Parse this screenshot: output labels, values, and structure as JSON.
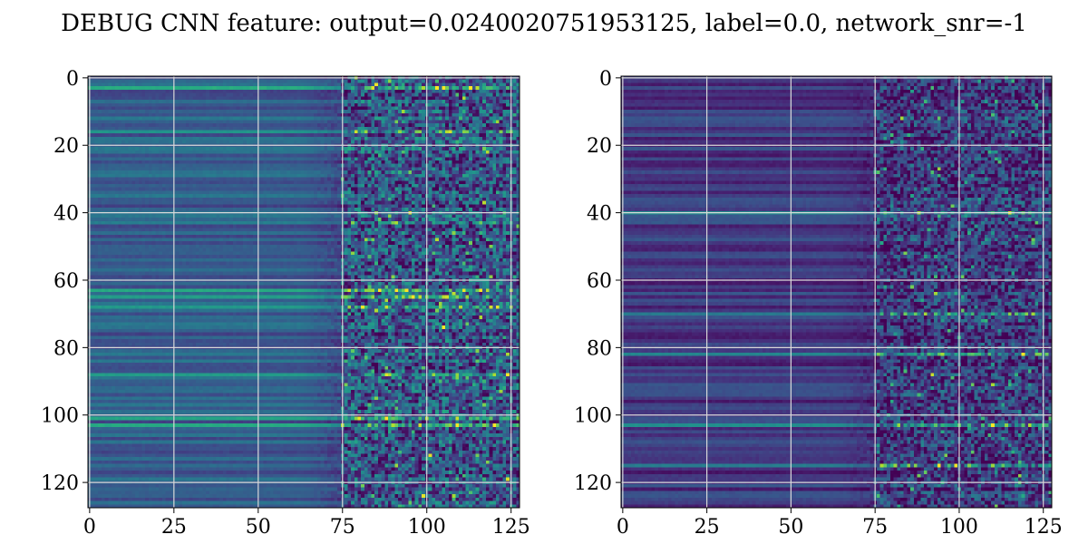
{
  "figure": {
    "title": "DEBUG CNN feature: output=0.0240020751953125, label=0.0, network_snr=-1"
  },
  "chart_data": [
    {
      "type": "heatmap",
      "title": "",
      "xlabel": "",
      "ylabel": "",
      "rows": 128,
      "cols": 128,
      "xlim": [
        0,
        127
      ],
      "ylim": [
        127,
        0
      ],
      "grid": true,
      "colormap": "viridis",
      "x_ticks": [
        0,
        25,
        50,
        75,
        100,
        125
      ],
      "y_ticks": [
        0,
        20,
        40,
        60,
        80,
        100,
        120
      ],
      "character": {
        "smooth_cols": [
          0,
          75
        ],
        "noisy_cols": [
          75,
          127
        ],
        "base_level": 0.3,
        "noise_level": 0.55,
        "bright_rows": [
          3,
          16,
          43,
          63,
          65,
          68,
          88,
          101,
          103
        ]
      }
    },
    {
      "type": "heatmap",
      "title": "",
      "xlabel": "",
      "ylabel": "",
      "rows": 128,
      "cols": 128,
      "xlim": [
        0,
        127
      ],
      "ylim": [
        127,
        0
      ],
      "grid": true,
      "colormap": "viridis",
      "x_ticks": [
        0,
        25,
        50,
        75,
        100,
        125
      ],
      "y_ticks": [
        0,
        20,
        40,
        60,
        80,
        100,
        120
      ],
      "character": {
        "smooth_cols": [
          0,
          75
        ],
        "noisy_cols": [
          75,
          127
        ],
        "base_level": 0.17,
        "noise_level": 0.45,
        "bright_rows": [
          40,
          70,
          82,
          103,
          115
        ]
      }
    }
  ]
}
